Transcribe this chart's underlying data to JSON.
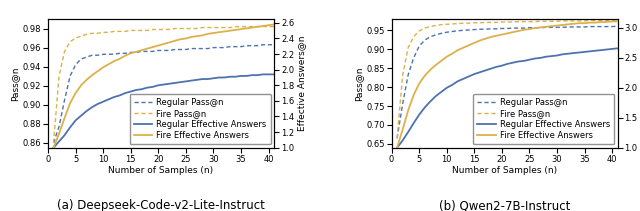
{
  "subplot_a": {
    "title": "(a) Deepseek-Code-v2-Lite-Instruct",
    "xlabel": "Number of Samples (n)",
    "ylabel_left": "Pass@n",
    "ylabel_right": "Effective Answers@n",
    "ylim_left": [
      0.855,
      0.99
    ],
    "ylim_right": [
      1.0,
      2.65
    ],
    "yticks_left": [
      0.86,
      0.88,
      0.9,
      0.92,
      0.94,
      0.96,
      0.98
    ],
    "yticks_right": [
      1.0,
      1.2,
      1.4,
      1.6,
      1.8,
      2.0,
      2.2,
      2.4,
      2.6
    ],
    "xlim": [
      0,
      41
    ],
    "xticks": [
      0,
      5,
      10,
      15,
      20,
      25,
      30,
      35,
      40
    ],
    "regular_pass_n": [
      0.86,
      0.877,
      0.905,
      0.93,
      0.942,
      0.948,
      0.95,
      0.952,
      0.952,
      0.953,
      0.953,
      0.953,
      0.954,
      0.954,
      0.955,
      0.955,
      0.956,
      0.956,
      0.956,
      0.957,
      0.957,
      0.957,
      0.958,
      0.958,
      0.958,
      0.959,
      0.959,
      0.959,
      0.959,
      0.96,
      0.96,
      0.96,
      0.961,
      0.961,
      0.961,
      0.962,
      0.962,
      0.962,
      0.963,
      0.963,
      0.963
    ],
    "fire_pass_n": [
      0.86,
      0.93,
      0.956,
      0.966,
      0.97,
      0.972,
      0.974,
      0.975,
      0.975,
      0.976,
      0.976,
      0.977,
      0.977,
      0.977,
      0.978,
      0.978,
      0.978,
      0.978,
      0.979,
      0.979,
      0.979,
      0.979,
      0.98,
      0.98,
      0.98,
      0.98,
      0.98,
      0.981,
      0.981,
      0.981,
      0.981,
      0.981,
      0.981,
      0.982,
      0.982,
      0.982,
      0.982,
      0.982,
      0.982,
      0.982,
      0.982
    ],
    "regular_eff": [
      1.0,
      1.08,
      1.16,
      1.26,
      1.35,
      1.41,
      1.47,
      1.52,
      1.56,
      1.59,
      1.62,
      1.65,
      1.67,
      1.7,
      1.72,
      1.74,
      1.75,
      1.77,
      1.78,
      1.8,
      1.81,
      1.82,
      1.83,
      1.84,
      1.85,
      1.86,
      1.87,
      1.88,
      1.88,
      1.89,
      1.9,
      1.9,
      1.91,
      1.91,
      1.92,
      1.92,
      1.93,
      1.93,
      1.94,
      1.94,
      1.94
    ],
    "fire_eff": [
      1.0,
      1.18,
      1.38,
      1.57,
      1.7,
      1.8,
      1.87,
      1.93,
      1.98,
      2.03,
      2.07,
      2.11,
      2.14,
      2.18,
      2.21,
      2.23,
      2.25,
      2.27,
      2.29,
      2.31,
      2.33,
      2.35,
      2.37,
      2.39,
      2.4,
      2.42,
      2.43,
      2.44,
      2.46,
      2.47,
      2.48,
      2.49,
      2.5,
      2.51,
      2.52,
      2.53,
      2.54,
      2.55,
      2.56,
      2.57,
      2.58
    ]
  },
  "subplot_b": {
    "title": "(b) Qwen2-7B-Instruct",
    "xlabel": "Number of Samples (n)",
    "ylabel_left": "Pass@n",
    "ylabel_right": "Effective Answers@n",
    "ylim_left": [
      0.64,
      0.98
    ],
    "ylim_right": [
      1.0,
      3.15
    ],
    "yticks_left": [
      0.65,
      0.7,
      0.75,
      0.8,
      0.85,
      0.9,
      0.95
    ],
    "yticks_right": [
      1.0,
      1.5,
      2.0,
      2.5,
      3.0
    ],
    "xlim": [
      0,
      41
    ],
    "xticks": [
      0,
      5,
      10,
      15,
      20,
      25,
      30,
      35,
      40
    ],
    "regular_pass_n": [
      0.665,
      0.755,
      0.832,
      0.877,
      0.908,
      0.924,
      0.933,
      0.938,
      0.942,
      0.945,
      0.947,
      0.949,
      0.95,
      0.951,
      0.952,
      0.953,
      0.953,
      0.954,
      0.954,
      0.955,
      0.955,
      0.956,
      0.956,
      0.956,
      0.957,
      0.957,
      0.957,
      0.958,
      0.958,
      0.958,
      0.958,
      0.959,
      0.959,
      0.959,
      0.959,
      0.96,
      0.96,
      0.96,
      0.96,
      0.96,
      0.961
    ],
    "fire_pass_n": [
      0.665,
      0.83,
      0.904,
      0.933,
      0.948,
      0.956,
      0.96,
      0.963,
      0.965,
      0.966,
      0.967,
      0.968,
      0.969,
      0.969,
      0.97,
      0.97,
      0.971,
      0.971,
      0.971,
      0.972,
      0.972,
      0.972,
      0.973,
      0.973,
      0.973,
      0.973,
      0.974,
      0.974,
      0.974,
      0.974,
      0.975,
      0.975,
      0.975,
      0.975,
      0.975,
      0.976,
      0.976,
      0.976,
      0.976,
      0.976,
      0.976
    ],
    "regular_eff": [
      1.0,
      1.12,
      1.26,
      1.41,
      1.55,
      1.67,
      1.77,
      1.86,
      1.93,
      2.0,
      2.05,
      2.11,
      2.15,
      2.19,
      2.23,
      2.26,
      2.29,
      2.32,
      2.35,
      2.37,
      2.4,
      2.42,
      2.44,
      2.45,
      2.47,
      2.49,
      2.5,
      2.52,
      2.53,
      2.54,
      2.56,
      2.57,
      2.58,
      2.59,
      2.6,
      2.61,
      2.62,
      2.63,
      2.64,
      2.65,
      2.66
    ],
    "fire_eff": [
      1.0,
      1.3,
      1.62,
      1.88,
      2.07,
      2.2,
      2.3,
      2.38,
      2.45,
      2.52,
      2.57,
      2.63,
      2.67,
      2.71,
      2.75,
      2.79,
      2.82,
      2.85,
      2.87,
      2.89,
      2.91,
      2.93,
      2.95,
      2.97,
      2.98,
      3.0,
      3.01,
      3.02,
      3.03,
      3.04,
      3.05,
      3.06,
      3.07,
      3.08,
      3.08,
      3.09,
      3.09,
      3.1,
      3.1,
      3.11,
      3.11
    ]
  },
  "color_blue": "#4C72B0",
  "color_orange": "#DCB14A",
  "legend_fontsize": 6.0,
  "axis_fontsize": 6.5,
  "title_fontsize": 8.5,
  "tick_fontsize": 6.0,
  "dot_linewidth": 1.0,
  "solid_linewidth": 1.3
}
